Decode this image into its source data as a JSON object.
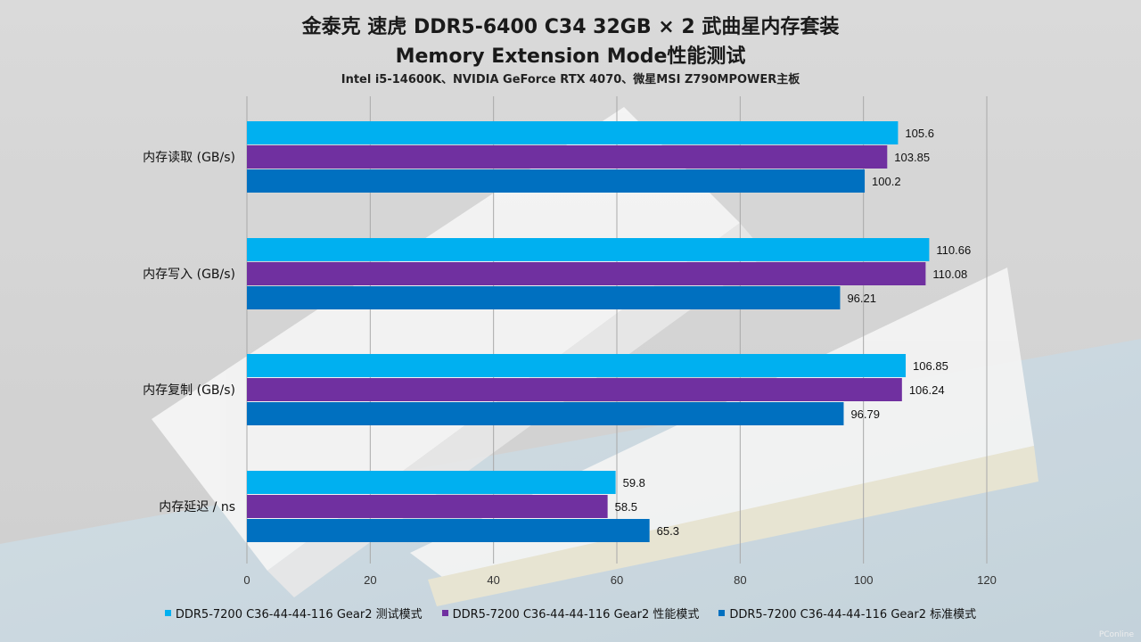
{
  "header": {
    "title_line1": "金泰克 速虎 DDR5-6400 C34 32GB × 2 武曲星内存套装",
    "title_line2": "Memory Extension Mode性能测试",
    "subtitle": "Intel i5-14600K、NVIDIA GeForce RTX 4070、微星MSI Z790MPOWER主板"
  },
  "watermark": "PConline",
  "chart_data": {
    "type": "bar",
    "orientation": "horizontal",
    "categories": [
      "内存读取 (GB/s)",
      "内存写入 (GB/s)",
      "内存复制 (GB/s)",
      "内存延迟 / ns"
    ],
    "series": [
      {
        "name": "DDR5-7200 C36-44-44-116 Gear2 测试模式",
        "color": "#00b0f0",
        "values": [
          105.6,
          110.66,
          106.85,
          59.8
        ],
        "labels": [
          "105.6",
          "110.66",
          "106.85",
          "59.8"
        ]
      },
      {
        "name": "DDR5-7200 C36-44-44-116 Gear2 性能模式",
        "color": "#7030a0",
        "values": [
          103.85,
          110.08,
          106.24,
          58.5
        ],
        "labels": [
          "103.85",
          "110.08",
          "106.24",
          "58.5"
        ]
      },
      {
        "name": "DDR5-7200 C36-44-44-116 Gear2 标准模式",
        "color": "#0070c0",
        "values": [
          100.2,
          96.21,
          96.79,
          65.3
        ],
        "labels": [
          "100.2",
          "96.21",
          "96.79",
          "65.3"
        ]
      }
    ],
    "xlim": [
      0,
      120
    ],
    "xticks": [
      0,
      20,
      40,
      60,
      80,
      100,
      120
    ],
    "grid": true,
    "legend": "bottom"
  }
}
